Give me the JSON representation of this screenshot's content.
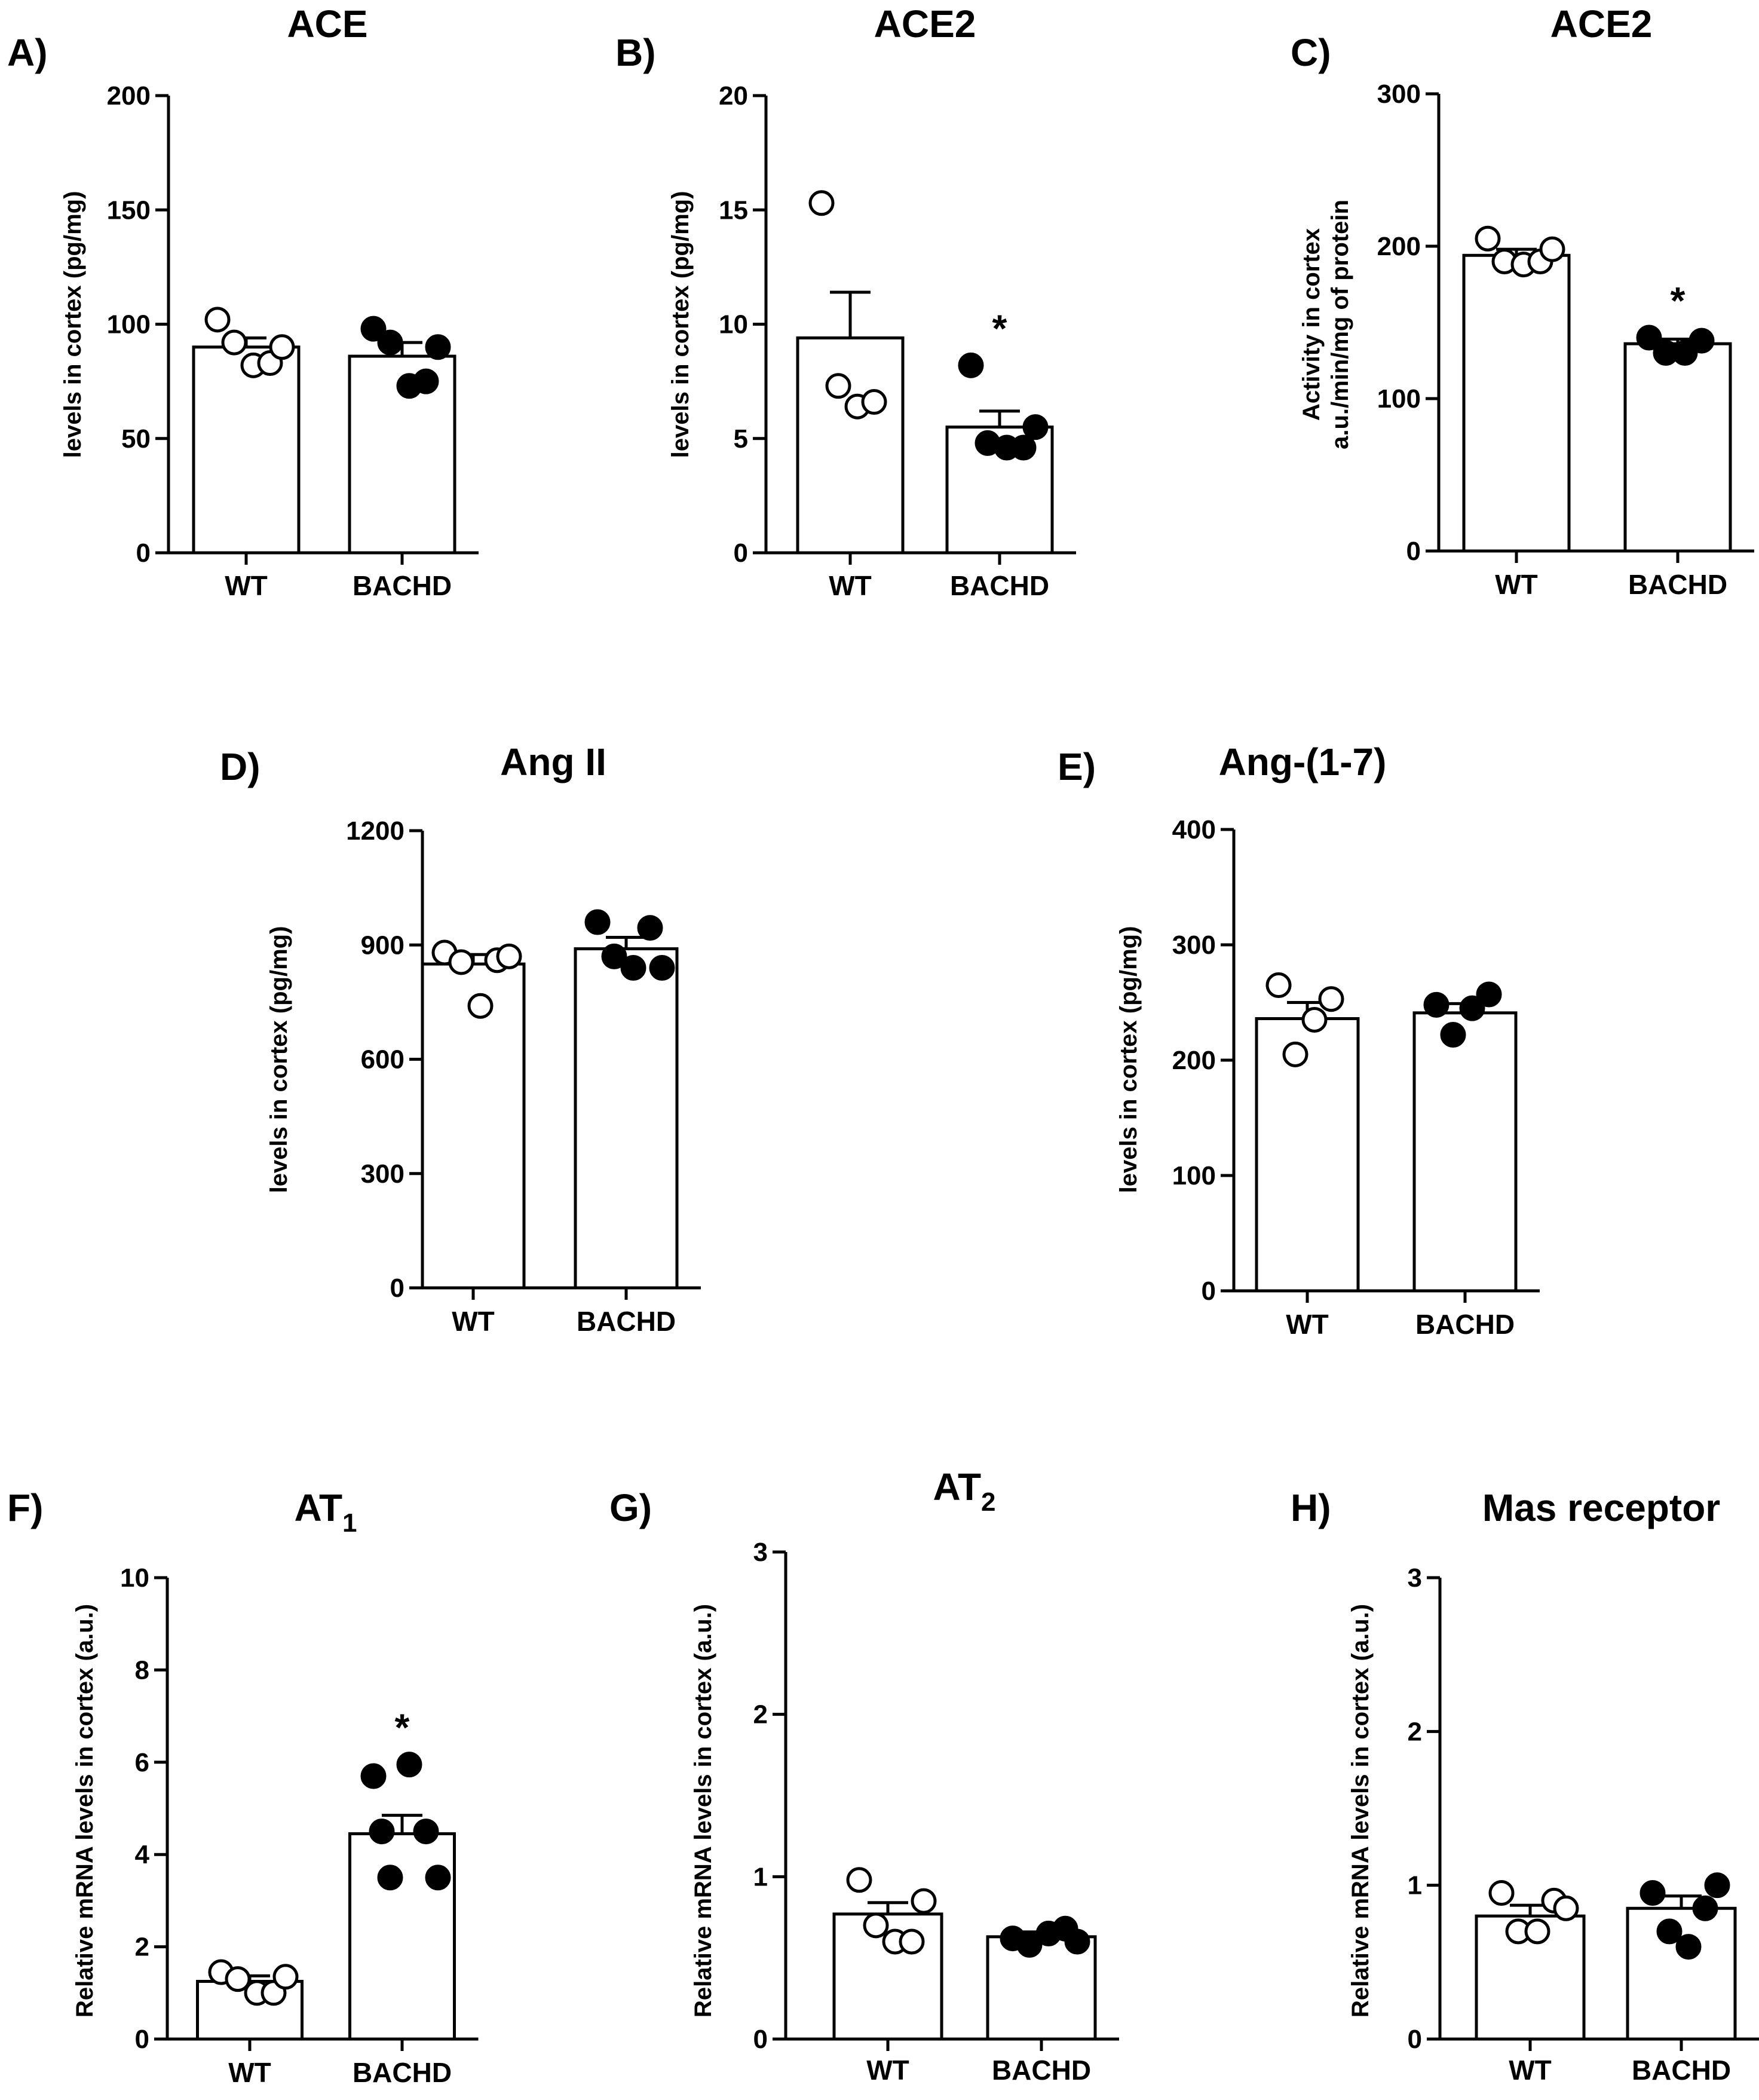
{
  "chart_data": [
    {
      "panel": "A)",
      "type": "bar",
      "title": "ACE",
      "title_sub": "",
      "ylabel": [
        "levels in cortex (pg/mg)"
      ],
      "ylim": [
        0,
        200
      ],
      "yticks": [
        0,
        50,
        100,
        150,
        200
      ],
      "categories": [
        "WT",
        "BACHD"
      ],
      "means": [
        90,
        86
      ],
      "sem": [
        4,
        6
      ],
      "points": [
        [
          102,
          92,
          82,
          83,
          90
        ],
        [
          98,
          92,
          73,
          75,
          90
        ]
      ],
      "filled": [
        false,
        true
      ],
      "significance": [
        "",
        ""
      ]
    },
    {
      "panel": "B)",
      "type": "bar",
      "title": "ACE2",
      "title_sub": "",
      "ylabel": [
        "levels in cortex (pg/mg)"
      ],
      "ylim": [
        0,
        20
      ],
      "yticks": [
        0,
        5,
        10,
        15,
        20
      ],
      "categories": [
        "WT",
        "BACHD"
      ],
      "means": [
        9.4,
        5.5
      ],
      "sem": [
        2.0,
        0.7
      ],
      "points": [
        [
          15.3,
          7.3,
          6.4,
          6.6
        ],
        [
          8.2,
          4.8,
          4.6,
          4.6,
          5.5
        ]
      ],
      "filled": [
        false,
        true
      ],
      "significance": [
        "",
        "*"
      ]
    },
    {
      "panel": "C)",
      "type": "bar",
      "title": "ACE2",
      "title_sub": "",
      "ylabel": [
        "Activity in cortex",
        "a.u./min/mg of protein"
      ],
      "ylim": [
        0,
        300
      ],
      "yticks": [
        0,
        100,
        200,
        300
      ],
      "categories": [
        "WT",
        "BACHD"
      ],
      "means": [
        194,
        136
      ],
      "sem": [
        4,
        3
      ],
      "points": [
        [
          205,
          190,
          188,
          190,
          198
        ],
        [
          140,
          130,
          130,
          138
        ]
      ],
      "filled": [
        false,
        true
      ],
      "significance": [
        "",
        "*"
      ]
    },
    {
      "panel": "D)",
      "type": "bar",
      "title": "Ang II",
      "title_sub": "",
      "ylabel": [
        "levels in cortex (pg/mg)"
      ],
      "ylim": [
        0,
        1200
      ],
      "yticks": [
        0,
        300,
        600,
        900,
        1200
      ],
      "categories": [
        "WT",
        "BACHD"
      ],
      "means": [
        850,
        890
      ],
      "sem": [
        25,
        30
      ],
      "points": [
        [
          880,
          855,
          740,
          860,
          870
        ],
        [
          960,
          870,
          840,
          945,
          840
        ]
      ],
      "filled": [
        false,
        true
      ],
      "significance": [
        "",
        ""
      ]
    },
    {
      "panel": "E)",
      "type": "bar",
      "title": "Ang-(1-7)",
      "title_sub": "",
      "ylabel": [
        "levels in cortex (pg/mg)"
      ],
      "ylim": [
        0,
        400
      ],
      "yticks": [
        0,
        100,
        200,
        300,
        400
      ],
      "categories": [
        "WT",
        "BACHD"
      ],
      "means": [
        236,
        241
      ],
      "sem": [
        14,
        8
      ],
      "points": [
        [
          265,
          205,
          235,
          253
        ],
        [
          248,
          222,
          245,
          257
        ]
      ],
      "filled": [
        false,
        true
      ],
      "significance": [
        "",
        ""
      ]
    },
    {
      "panel": "F)",
      "type": "bar",
      "title": "AT",
      "title_sub": "1",
      "ylabel": [
        "Relative mRNA levels in cortex (a.u.)"
      ],
      "ylim": [
        0,
        10
      ],
      "yticks": [
        0,
        2,
        4,
        6,
        8,
        10
      ],
      "categories": [
        "WT",
        "BACHD"
      ],
      "means": [
        1.25,
        4.45
      ],
      "sem": [
        0.12,
        0.4
      ],
      "points": [
        [
          1.45,
          1.3,
          1.0,
          1.0,
          1.35
        ],
        [
          5.7,
          3.5,
          5.95,
          4.5,
          3.5,
          4.5
        ]
      ],
      "filled": [
        false,
        true
      ],
      "significance": [
        "",
        "*"
      ]
    },
    {
      "panel": "G)",
      "type": "bar",
      "title": "AT",
      "title_sub": "2",
      "ylabel": [
        "Relative mRNA levels in cortex (a.u.)"
      ],
      "ylim": [
        0,
        3
      ],
      "yticks": [
        0,
        1,
        2,
        3
      ],
      "categories": [
        "WT",
        "BACHD"
      ],
      "means": [
        0.77,
        0.63
      ],
      "sem": [
        0.07,
        0.03
      ],
      "points": [
        [
          0.98,
          0.7,
          0.6,
          0.6,
          0.85
        ],
        [
          0.62,
          0.58,
          0.65,
          0.68,
          0.6
        ]
      ],
      "filled": [
        false,
        true
      ],
      "significance": [
        "",
        ""
      ]
    },
    {
      "panel": "H)",
      "type": "bar",
      "title": "Mas receptor",
      "title_sub": "",
      "ylabel": [
        "Relative mRNA levels in cortex (a.u.)"
      ],
      "ylim": [
        0,
        3
      ],
      "yticks": [
        0,
        1,
        2,
        3
      ],
      "categories": [
        "WT",
        "BACHD"
      ],
      "means": [
        0.8,
        0.85
      ],
      "sem": [
        0.07,
        0.08
      ],
      "points": [
        [
          0.95,
          0.7,
          0.7,
          0.9,
          0.85
        ],
        [
          0.95,
          0.7,
          0.6,
          0.85,
          1.0
        ]
      ],
      "filled": [
        false,
        true
      ],
      "significance": [
        "",
        ""
      ]
    }
  ]
}
